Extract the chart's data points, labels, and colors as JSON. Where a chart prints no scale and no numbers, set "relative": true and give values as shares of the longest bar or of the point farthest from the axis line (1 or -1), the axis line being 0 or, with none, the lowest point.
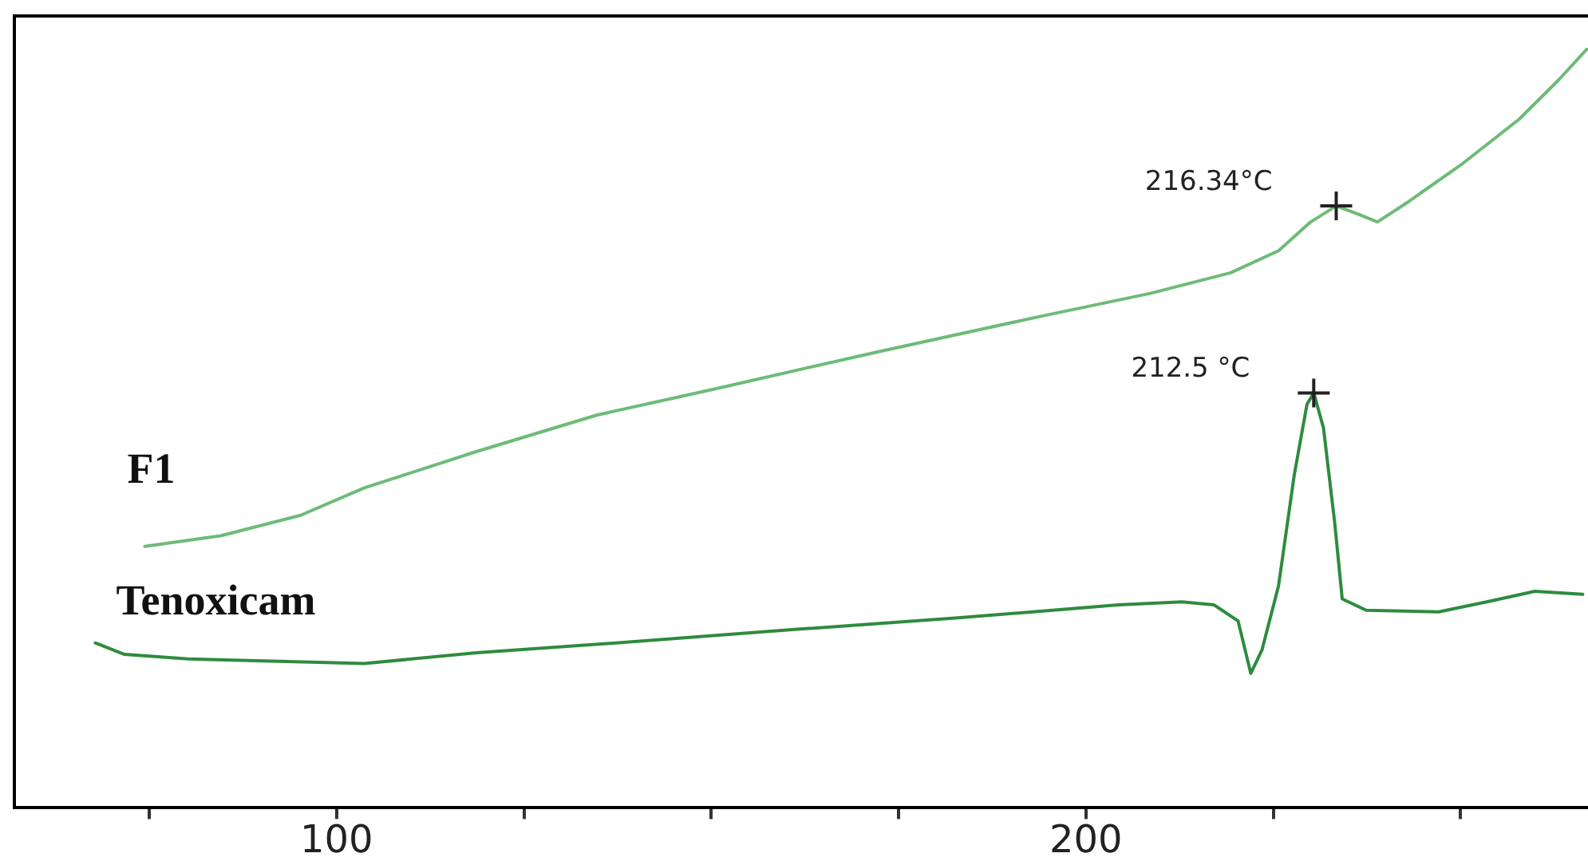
{
  "chart_data": {
    "type": "line",
    "relative": true,
    "xlim": [
      57,
      267
    ],
    "xticks": [
      {
        "value": 75,
        "label": null
      },
      100,
      {
        "value": 125,
        "label": null
      },
      {
        "value": 150,
        "label": null
      },
      {
        "value": 175,
        "label": null
      },
      200,
      {
        "value": 225,
        "label": null
      },
      {
        "value": 250,
        "label": null
      }
    ],
    "grid": false,
    "legend": false,
    "marker": "none",
    "line_style": "solid",
    "series": [
      {
        "name": "F1",
        "color": "#6dbb78",
        "x": [
          74.4,
          84.5,
          95.2,
          103.7,
          118.7,
          134.8,
          150.8,
          172.2,
          193.6,
          208.6,
          219.3,
          225.7,
          230.0,
          233.4,
          236.4,
          238.9,
          242.8,
          250.3,
          257.8,
          263.1,
          267
        ],
        "values": [
          0.344,
          0.358,
          0.385,
          0.421,
          0.469,
          0.517,
          0.552,
          0.6,
          0.646,
          0.677,
          0.704,
          0.733,
          0.771,
          0.792,
          0.781,
          0.771,
          0.796,
          0.848,
          0.906,
          0.958,
          1
        ]
      },
      {
        "name": "Tenoxicam",
        "color": "#2e8b3e",
        "x": [
          67.8,
          71.7,
          80.2,
          103.7,
          118.7,
          140.1,
          161.5,
          182.9,
          204.3,
          212.8,
          217.1,
          220.3,
          222.0,
          223.5,
          225.7,
          227.8,
          229.5,
          230.4,
          231.7,
          233.2,
          234.2,
          237.4,
          247.1,
          253.5,
          259.9,
          266.3
        ],
        "values": [
          0.217,
          0.202,
          0.196,
          0.19,
          0.204,
          0.219,
          0.235,
          0.25,
          0.267,
          0.271,
          0.267,
          0.246,
          0.177,
          0.208,
          0.292,
          0.438,
          0.531,
          0.546,
          0.5,
          0.375,
          0.275,
          0.26,
          0.258,
          0.271,
          0.285,
          0.281
        ]
      }
    ],
    "annotations": [
      {
        "text": "216.34°C",
        "x": 233.4,
        "y": 0.792
      },
      {
        "text": "212.5 °C",
        "x": 230.4,
        "y": 0.546
      }
    ]
  }
}
